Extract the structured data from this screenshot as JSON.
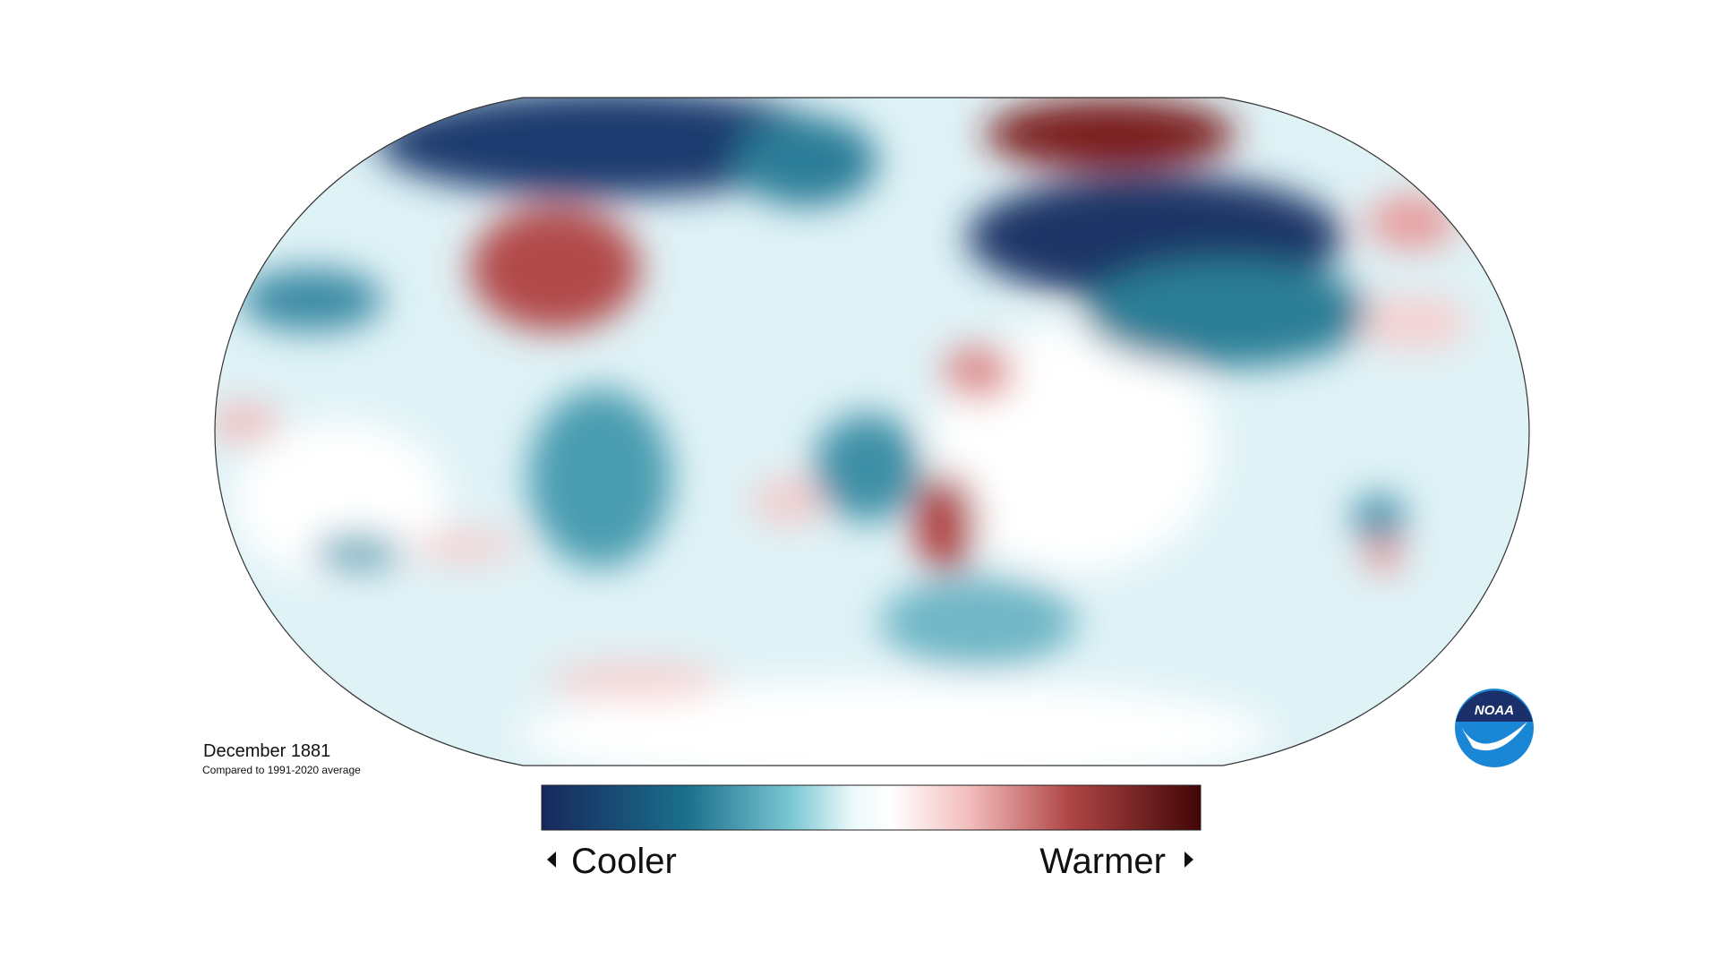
{
  "title": "December 1881",
  "subtitle": "Compared to 1991-2020 average",
  "legend": {
    "low_label": "Cooler",
    "high_label": "Warmer"
  },
  "logo": {
    "text": "NOAA"
  }
}
